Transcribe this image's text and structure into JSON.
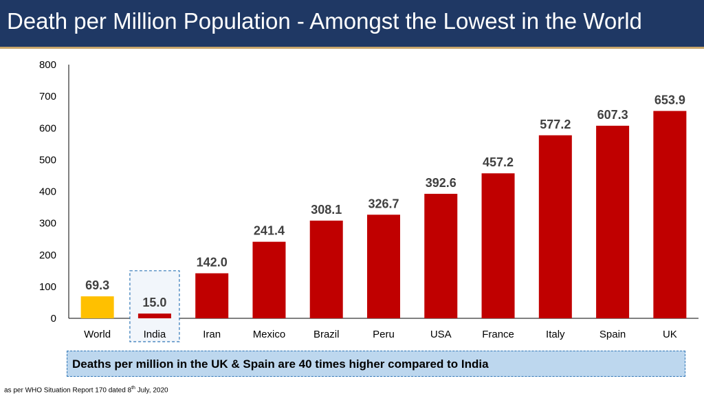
{
  "title": "Death per Million Population - Amongst the Lowest in the World",
  "callout": "Deaths per million in the UK & Spain are 40 times higher compared to India",
  "footnote": {
    "prefix": "as per WHO Situation Report 170 dated 8",
    "sup": "th",
    "suffix": " July, 2020"
  },
  "colors": {
    "header_bg": "#1f3864",
    "bar_default": "#c00000",
    "bar_world": "#ffc000",
    "highlight_border": "#2e75b6",
    "callout_bg": "#bdd7ee"
  },
  "chart_data": {
    "type": "bar",
    "title": "",
    "xlabel": "",
    "ylabel": "",
    "ylim": [
      0,
      800
    ],
    "yticks": [
      0,
      100,
      200,
      300,
      400,
      500,
      600,
      700,
      800
    ],
    "categories": [
      "World",
      "India",
      "Iran",
      "Mexico",
      "Brazil",
      "Peru",
      "USA",
      "France",
      "Italy",
      "Spain",
      "UK"
    ],
    "values": [
      69.3,
      15.0,
      142.0,
      241.4,
      308.1,
      326.7,
      392.6,
      457.2,
      577.2,
      607.3,
      653.9
    ],
    "labels": [
      "69.3",
      "15.0",
      "142.0",
      "241.4",
      "308.1",
      "326.7",
      "392.6",
      "457.2",
      "577.2",
      "607.3",
      "653.9"
    ],
    "highlighted_category": "India",
    "grid": false
  }
}
